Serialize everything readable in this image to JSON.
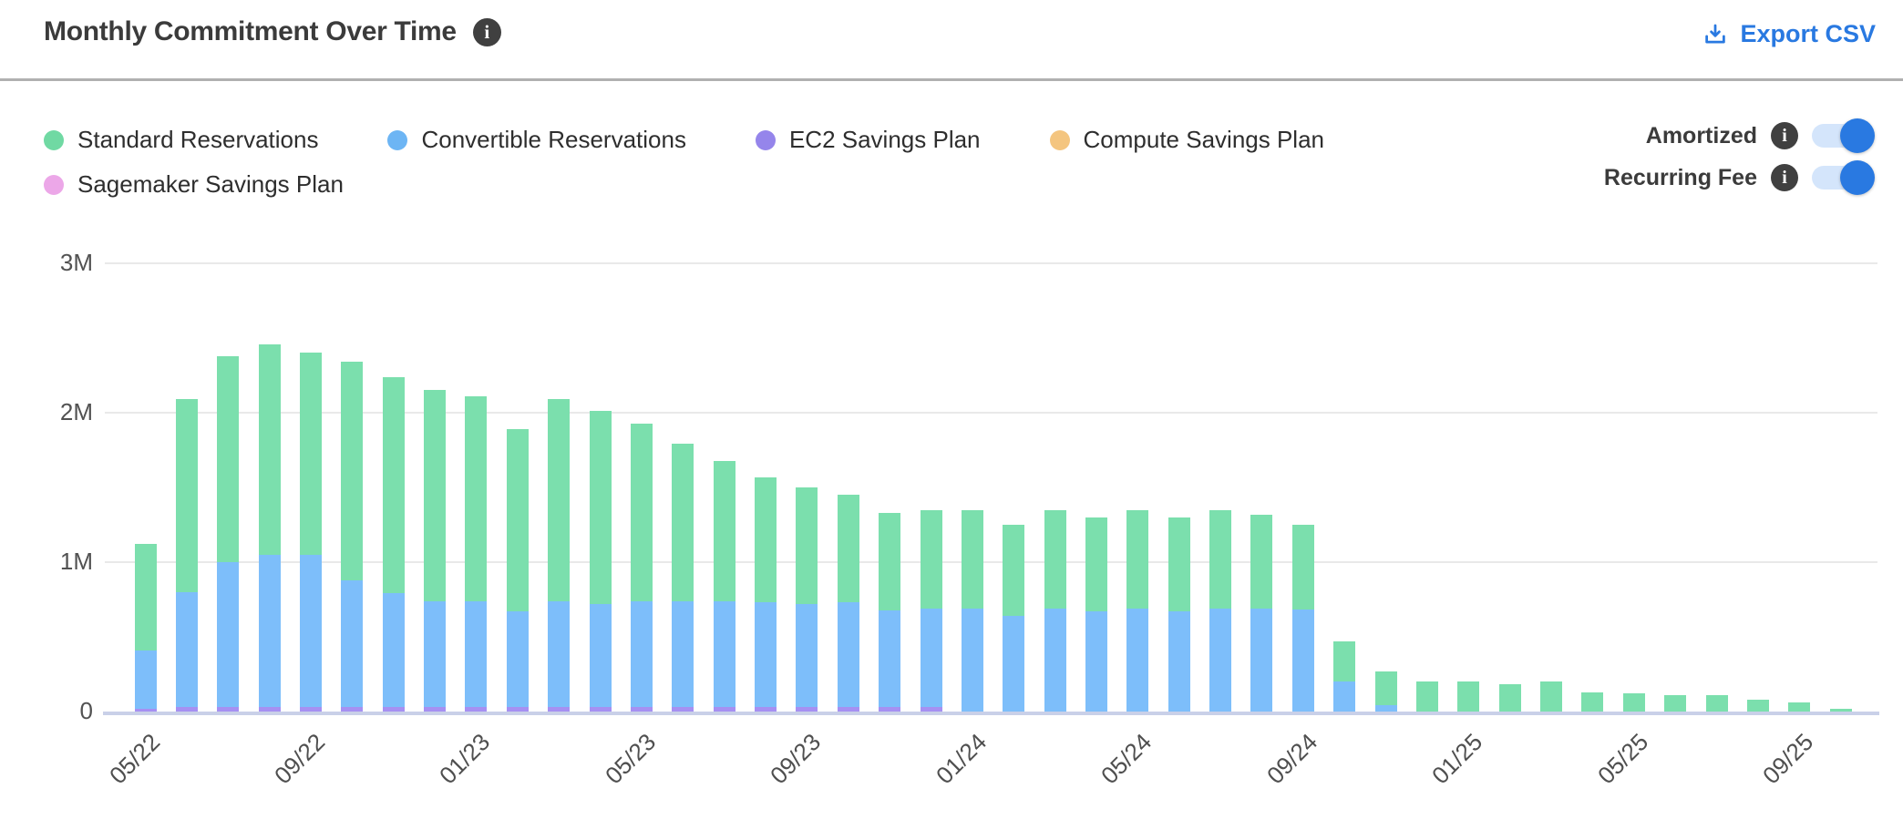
{
  "header": {
    "title": "Monthly Commitment Over Time",
    "export_label": "Export CSV"
  },
  "legend": {
    "items": [
      {
        "label": "Standard Reservations",
        "color": "#70d9a3"
      },
      {
        "label": "Convertible Reservations",
        "color": "#6db5f4"
      },
      {
        "label": "EC2 Savings Plan",
        "color": "#9585eb"
      },
      {
        "label": "Compute Savings Plan",
        "color": "#f4c57f"
      },
      {
        "label": "Sagemaker Savings Plan",
        "color": "#eca7e8"
      }
    ]
  },
  "controls": {
    "toggles": [
      {
        "label": "Amortized",
        "state": "on"
      },
      {
        "label": "Recurring Fee",
        "state": "on"
      }
    ]
  },
  "chart_data": {
    "type": "bar",
    "stacked": true,
    "title": "Monthly Commitment Over Time",
    "values_unit": "millions",
    "ylim_millions": [
      0,
      3
    ],
    "y_ticks": [
      "0",
      "1M",
      "2M",
      "3M"
    ],
    "grid": true,
    "legend_position": "top-left",
    "months": [
      "05/22",
      "06/22",
      "07/22",
      "08/22",
      "09/22",
      "10/22",
      "11/22",
      "12/22",
      "01/23",
      "02/23",
      "03/23",
      "04/23",
      "05/23",
      "06/23",
      "07/23",
      "08/23",
      "09/23",
      "10/23",
      "11/23",
      "12/23",
      "01/24",
      "02/24",
      "03/24",
      "04/24",
      "05/24",
      "06/24",
      "07/24",
      "08/24",
      "09/24",
      "10/24",
      "11/24",
      "12/24",
      "01/25",
      "02/25",
      "03/25",
      "04/25",
      "05/25",
      "06/25",
      "07/25",
      "08/25",
      "09/25",
      "10/25"
    ],
    "x_tick_labels": [
      "05/22",
      "09/22",
      "01/23",
      "05/23",
      "09/23",
      "01/24",
      "05/24",
      "09/24",
      "01/25",
      "05/25",
      "09/25"
    ],
    "stack_order_bottom_to_top": [
      "EC2 Savings Plan",
      "Convertible Reservations",
      "Standard Reservations",
      "Compute Savings Plan",
      "Sagemaker Savings Plan"
    ],
    "series": [
      {
        "name": "Standard Reservations",
        "color": "#7bdfad",
        "values": [
          0.71,
          1.29,
          1.38,
          1.41,
          1.35,
          1.46,
          1.45,
          1.41,
          1.37,
          1.22,
          1.35,
          1.29,
          1.19,
          1.05,
          0.94,
          0.84,
          0.78,
          0.72,
          0.65,
          0.66,
          0.66,
          0.61,
          0.66,
          0.63,
          0.66,
          0.63,
          0.66,
          0.63,
          0.57,
          0.27,
          0.23,
          0.2,
          0.2,
          0.18,
          0.2,
          0.13,
          0.12,
          0.11,
          0.11,
          0.08,
          0.06,
          0.02
        ]
      },
      {
        "name": "Convertible Reservations",
        "color": "#7dbefa",
        "values": [
          0.39,
          0.77,
          0.97,
          1.02,
          1.02,
          0.85,
          0.76,
          0.71,
          0.71,
          0.64,
          0.71,
          0.69,
          0.71,
          0.71,
          0.71,
          0.7,
          0.69,
          0.7,
          0.65,
          0.66,
          0.69,
          0.64,
          0.69,
          0.67,
          0.69,
          0.67,
          0.69,
          0.69,
          0.68,
          0.2,
          0.04,
          0,
          0,
          0,
          0,
          0,
          0,
          0,
          0,
          0,
          0,
          0
        ]
      },
      {
        "name": "EC2 Savings Plan",
        "color": "#a690f2",
        "values": [
          0.02,
          0.03,
          0.03,
          0.03,
          0.03,
          0.03,
          0.03,
          0.03,
          0.03,
          0.03,
          0.03,
          0.03,
          0.03,
          0.03,
          0.03,
          0.03,
          0.03,
          0.03,
          0.03,
          0.03,
          0,
          0,
          0,
          0,
          0,
          0,
          0,
          0,
          0,
          0,
          0,
          0,
          0,
          0,
          0,
          0,
          0,
          0,
          0,
          0,
          0,
          0
        ]
      },
      {
        "name": "Compute Savings Plan",
        "color": "#f4c57f",
        "values": [
          0,
          0,
          0,
          0,
          0,
          0,
          0,
          0,
          0,
          0,
          0,
          0,
          0,
          0,
          0,
          0,
          0,
          0,
          0,
          0,
          0,
          0,
          0,
          0,
          0,
          0,
          0,
          0,
          0,
          0,
          0,
          0,
          0,
          0,
          0,
          0,
          0,
          0,
          0,
          0,
          0,
          0
        ]
      },
      {
        "name": "Sagemaker Savings Plan",
        "color": "#eca7e8",
        "values": [
          0,
          0,
          0,
          0,
          0,
          0,
          0,
          0,
          0,
          0,
          0,
          0,
          0,
          0,
          0,
          0,
          0,
          0,
          0,
          0,
          0,
          0,
          0,
          0,
          0,
          0,
          0,
          0,
          0,
          0,
          0,
          0,
          0,
          0,
          0,
          0,
          0,
          0,
          0,
          0,
          0,
          0
        ]
      }
    ]
  }
}
